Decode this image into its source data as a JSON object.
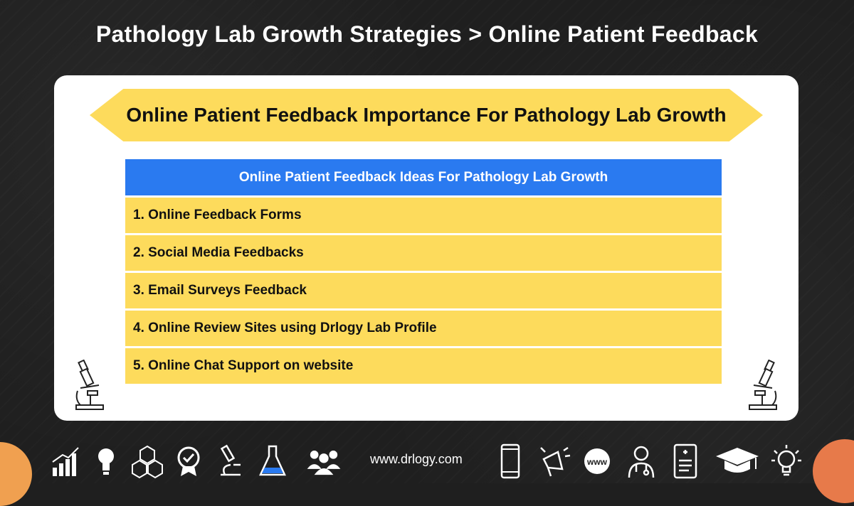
{
  "header": {
    "title": "Pathology Lab Growth Strategies > Online Patient Feedback"
  },
  "banner": {
    "title": "Online Patient Feedback Importance For Pathology Lab Growth"
  },
  "table": {
    "heading": "Online Patient Feedback Ideas For Pathology Lab Growth",
    "rows": [
      "1. Online Feedback Forms",
      "2. Social Media Feedbacks",
      "3. Email Surveys Feedback",
      "4. Online Review Sites using Drlogy Lab Profile",
      "5. Online Chat Support on website"
    ]
  },
  "footer": {
    "website": "www.drlogy.com",
    "icons": [
      "chart-icon",
      "bulb-icon",
      "cubes-icon",
      "badge-icon",
      "microscope-icon",
      "flask-icon",
      "group-icon",
      "phone-icon",
      "megaphone-icon",
      "www-icon",
      "doctor-icon",
      "report-icon",
      "graduation-cap-icon",
      "idea-bulb-icon"
    ]
  },
  "colors": {
    "accent_yellow": "#fddb5c",
    "header_blue": "#2a7af0",
    "background": "#1f1f1f"
  }
}
